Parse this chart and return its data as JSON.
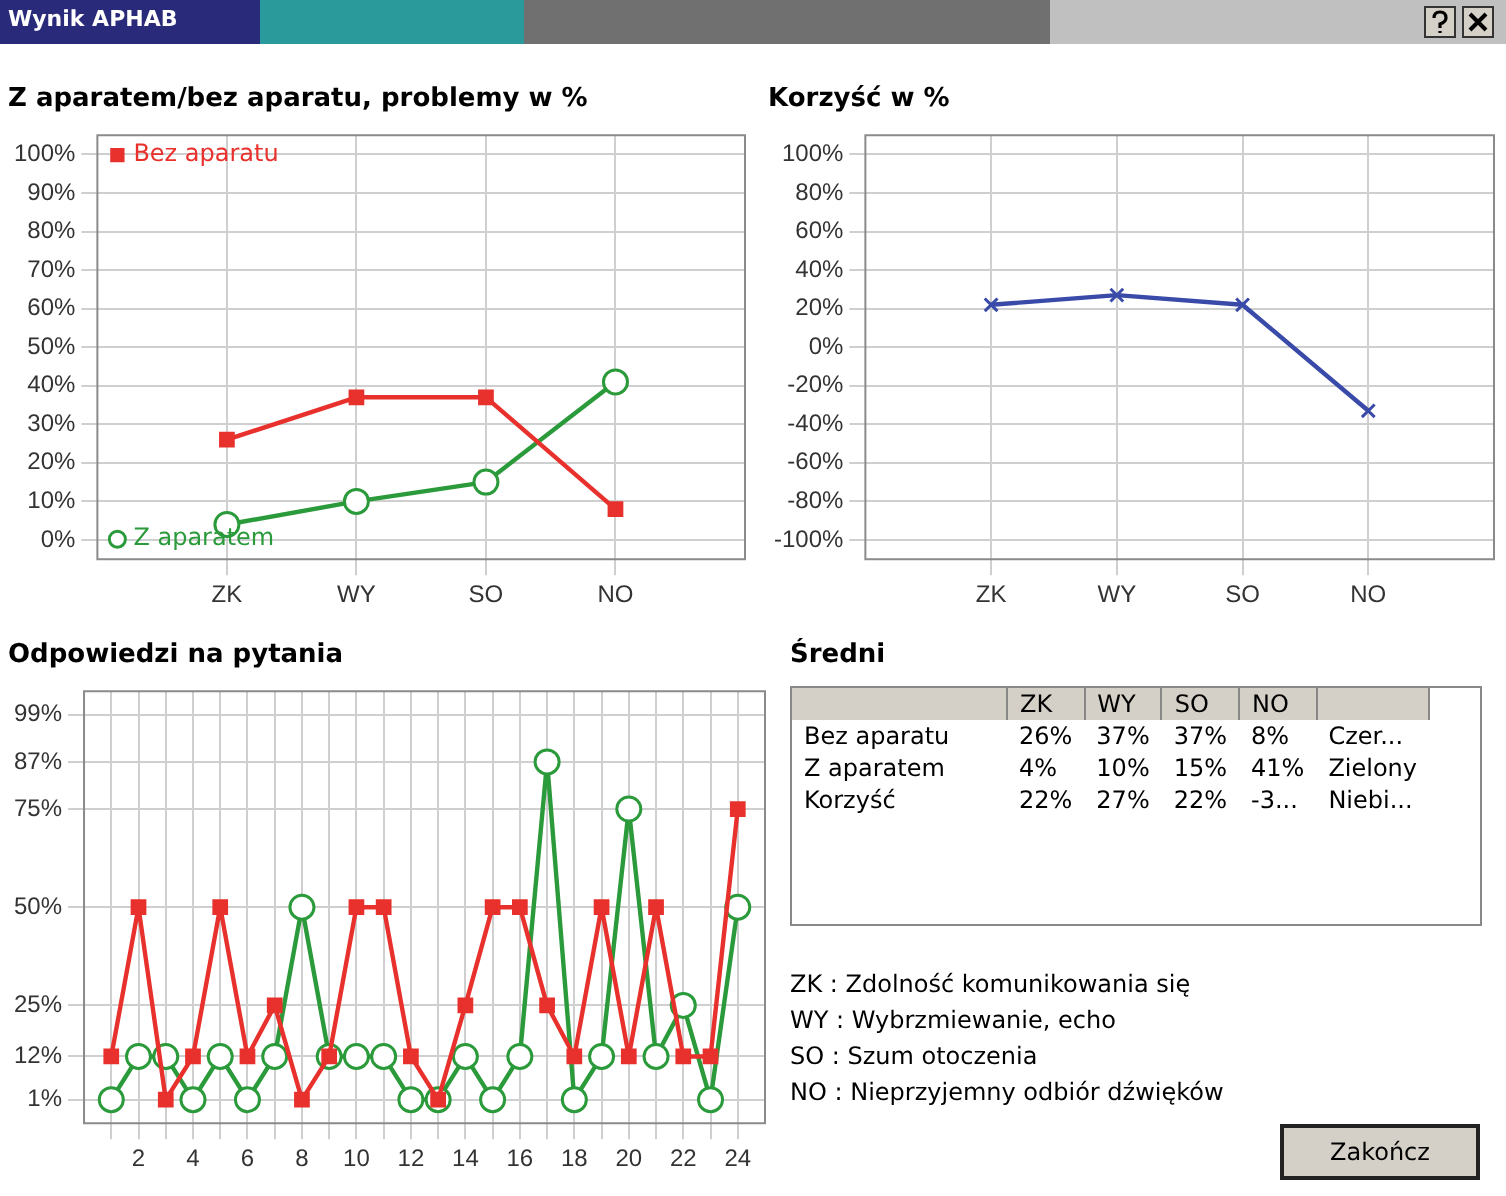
{
  "chart_data": [
    {
      "type": "line",
      "title": "Z aparatem/bez aparatu, problemy w %",
      "categories": [
        "ZK",
        "WY",
        "SO",
        "NO"
      ],
      "series": [
        {
          "name": "Bez aparatu",
          "color": "#e8302c",
          "marker": "square",
          "values": [
            26,
            37,
            37,
            8
          ]
        },
        {
          "name": "Z aparatem",
          "color": "#2a9a3a",
          "marker": "circle",
          "values": [
            4,
            10,
            15,
            41
          ]
        }
      ],
      "ylim": [
        -5,
        105
      ],
      "yticks": [
        {
          "value": 0,
          "label": "0%"
        },
        {
          "value": 10,
          "label": "10%"
        },
        {
          "value": 20,
          "label": "20%"
        },
        {
          "value": 30,
          "label": "30%"
        },
        {
          "value": 40,
          "label": "40%"
        },
        {
          "value": 50,
          "label": "50%"
        },
        {
          "value": 60,
          "label": "60%"
        },
        {
          "value": 70,
          "label": "70%"
        },
        {
          "value": 80,
          "label": "80%"
        },
        {
          "value": 90,
          "label": "90%"
        },
        {
          "value": 100,
          "label": "100%"
        }
      ],
      "grid": true,
      "legend": "left"
    },
    {
      "type": "line",
      "title": "Korzyść w %",
      "categories": [
        "ZK",
        "WY",
        "SO",
        "NO"
      ],
      "series": [
        {
          "color": "#3a4aa8",
          "values": [
            22,
            27,
            22,
            -33
          ]
        }
      ],
      "marker": "cross",
      "ylim": [
        -110,
        110
      ],
      "yticks": [
        {
          "value": -100,
          "label": "-100%"
        },
        {
          "value": -80,
          "label": "-80%"
        },
        {
          "value": -60,
          "label": "-60%"
        },
        {
          "value": -40,
          "label": "-40%"
        },
        {
          "value": -20,
          "label": "-20%"
        },
        {
          "value": 0,
          "label": "0%"
        },
        {
          "value": 20,
          "label": "20%"
        },
        {
          "value": 40,
          "label": "40%"
        },
        {
          "value": 60,
          "label": "60%"
        },
        {
          "value": 80,
          "label": "80%"
        },
        {
          "value": 100,
          "label": "100%"
        }
      ],
      "grid": true
    },
    {
      "type": "line",
      "title": "Odpowiedzi na pytania",
      "x": [
        1,
        2,
        3,
        4,
        5,
        6,
        7,
        8,
        9,
        10,
        11,
        12,
        13,
        14,
        15,
        16,
        17,
        18,
        19,
        20,
        21,
        22,
        23,
        24
      ],
      "series": [
        {
          "color": "#e8302c",
          "marker": "square",
          "values": [
            12,
            50,
            1,
            12,
            50,
            12,
            25,
            1,
            12,
            50,
            50,
            12,
            1,
            25,
            50,
            50,
            25,
            12,
            50,
            12,
            50,
            12,
            12,
            75
          ]
        },
        {
          "color": "#2a9a3a",
          "marker": "circle",
          "values": [
            1,
            12,
            12,
            1,
            12,
            1,
            12,
            50,
            12,
            12,
            12,
            1,
            1,
            12,
            1,
            12,
            87,
            1,
            12,
            75,
            12,
            25,
            1,
            50
          ]
        }
      ],
      "xlim": [
        0,
        25
      ],
      "xticks": [
        {
          "value": 1,
          "label": null
        },
        2,
        {
          "value": 3,
          "label": null
        },
        4,
        {
          "value": 5,
          "label": null
        },
        6,
        {
          "value": 7,
          "label": null
        },
        8,
        {
          "value": 9,
          "label": null
        },
        10,
        {
          "value": 11,
          "label": null
        },
        12,
        {
          "value": 13,
          "label": null
        },
        14,
        {
          "value": 15,
          "label": null
        },
        16,
        {
          "value": 17,
          "label": null
        },
        18,
        {
          "value": 19,
          "label": null
        },
        20,
        {
          "value": 21,
          "label": null
        },
        22,
        {
          "value": 23,
          "label": null
        },
        24
      ],
      "ylim": [
        -5,
        105
      ],
      "yticks": [
        {
          "value": 1,
          "label": "1%"
        },
        {
          "value": 12,
          "label": "12%"
        },
        {
          "value": 25,
          "label": "25%"
        },
        {
          "value": 50,
          "label": "50%"
        },
        {
          "value": 75,
          "label": "75%"
        },
        {
          "value": 87,
          "label": "87%"
        },
        {
          "value": 99,
          "label": "99%"
        }
      ],
      "grid": true
    },
    {
      "type": "other",
      "title": "Średni",
      "categories": [
        "ZK",
        "WY",
        "SO",
        "NO",
        null
      ],
      "series": [
        {
          "name": "Bez aparatu",
          "values": [
            26,
            37,
            37,
            8,
            null
          ],
          "value_labels": [
            "26%",
            "37%",
            "37%",
            "8%",
            "Czer..."
          ]
        },
        {
          "name": "Z aparatem",
          "values": [
            4,
            10,
            15,
            41,
            null
          ],
          "value_labels": [
            "4%",
            "10%",
            "15%",
            "41%",
            "Zielony"
          ]
        },
        {
          "name": "Korzyść",
          "values": [
            22,
            27,
            22,
            null,
            null
          ],
          "value_labels": [
            "22%",
            "27%",
            "22%",
            "-3...",
            "Niebi..."
          ]
        }
      ],
      "annotations": [
        "Wynik APHAB",
        "ZK : Zdolność komunikowania się",
        "WY : Wybrzmiewanie, echo",
        "SO : Szum otoczenia",
        "NO : Nieprzyjemny odbiór dźwięków",
        "Zakończ"
      ]
    }
  ]
}
